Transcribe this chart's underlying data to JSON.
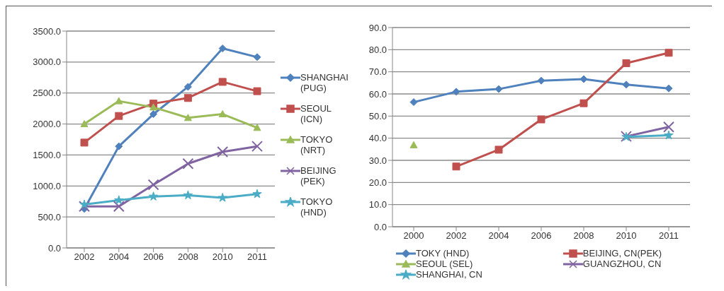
{
  "chart_data": [
    {
      "type": "line",
      "categories": [
        "2002",
        "2004",
        "2006",
        "2008",
        "2010",
        "2011"
      ],
      "ylim": [
        0,
        3500
      ],
      "yticks": [
        {
          "value": 0,
          "label": "0.0"
        },
        {
          "value": 500,
          "label": "500.0"
        },
        {
          "value": 1000,
          "label": "1000.0"
        },
        {
          "value": 1500,
          "label": "1500.0"
        },
        {
          "value": 2000,
          "label": "2000.0"
        },
        {
          "value": 2500,
          "label": "2500.0"
        },
        {
          "value": 3000,
          "label": "3000.0"
        },
        {
          "value": 3500,
          "label": "3500.0"
        }
      ],
      "grid": "y",
      "legend": "right",
      "series": [
        {
          "name": "SHANGHAI (PUG)",
          "color": "#4f81bd",
          "marker": "diamond",
          "values": [
            630,
            1640,
            2160,
            2600,
            3220,
            3080
          ]
        },
        {
          "name": "SEOUL (ICN)",
          "color": "#c0504d",
          "marker": "square",
          "values": [
            1700,
            2130,
            2330,
            2420,
            2680,
            2530
          ]
        },
        {
          "name": "TOKYO (NRT)",
          "color": "#9bbb59",
          "marker": "triangle",
          "values": [
            2000,
            2370,
            2270,
            2100,
            2160,
            1940
          ]
        },
        {
          "name": "BEIJING (PEK)",
          "color": "#8064a2",
          "marker": "cross",
          "values": [
            670,
            670,
            1020,
            1360,
            1550,
            1640
          ]
        },
        {
          "name": "TOKYO (HND)",
          "color": "#4bacc6",
          "marker": "star",
          "values": [
            700,
            770,
            830,
            850,
            810,
            870
          ]
        }
      ]
    },
    {
      "type": "line",
      "categories": [
        "2000",
        "2002",
        "2004",
        "2006",
        "2008",
        "2010",
        "2011"
      ],
      "ylim": [
        0,
        90
      ],
      "yticks": [
        {
          "value": 0,
          "label": "0.0"
        },
        {
          "value": 10,
          "label": "10.0"
        },
        {
          "value": 20,
          "label": "20.0"
        },
        {
          "value": 30,
          "label": "30.0"
        },
        {
          "value": 40,
          "label": "40.0"
        },
        {
          "value": 50,
          "label": "50.0"
        },
        {
          "value": 60,
          "label": "60.0"
        },
        {
          "value": 70,
          "label": "70.0"
        },
        {
          "value": 80,
          "label": "80.0"
        },
        {
          "value": 90,
          "label": "90.0"
        }
      ],
      "grid": "y",
      "legend": "bottom",
      "series": [
        {
          "name": "TOKY (HND)",
          "color": "#4f81bd",
          "marker": "diamond",
          "values": [
            56.3,
            61.0,
            62.2,
            66.0,
            66.7,
            64.2,
            62.5
          ]
        },
        {
          "name": "BEIJING, CN(PEK)",
          "color": "#c0504d",
          "marker": "square",
          "values": [
            null,
            27.2,
            34.8,
            48.5,
            55.8,
            73.9,
            78.6
          ]
        },
        {
          "name": "SEOUL (SEL)",
          "color": "#9bbb59",
          "marker": "triangle",
          "values": [
            36.9,
            null,
            null,
            null,
            null,
            null,
            null
          ]
        },
        {
          "name": "GUANGZHOU, CN",
          "color": "#8064a2",
          "marker": "cross",
          "values": [
            null,
            null,
            null,
            null,
            null,
            40.8,
            45.1
          ]
        },
        {
          "name": "SHANGHAI, CN",
          "color": "#4bacc6",
          "marker": "star",
          "values": [
            null,
            null,
            null,
            null,
            null,
            40.6,
            41.3
          ]
        }
      ]
    }
  ]
}
